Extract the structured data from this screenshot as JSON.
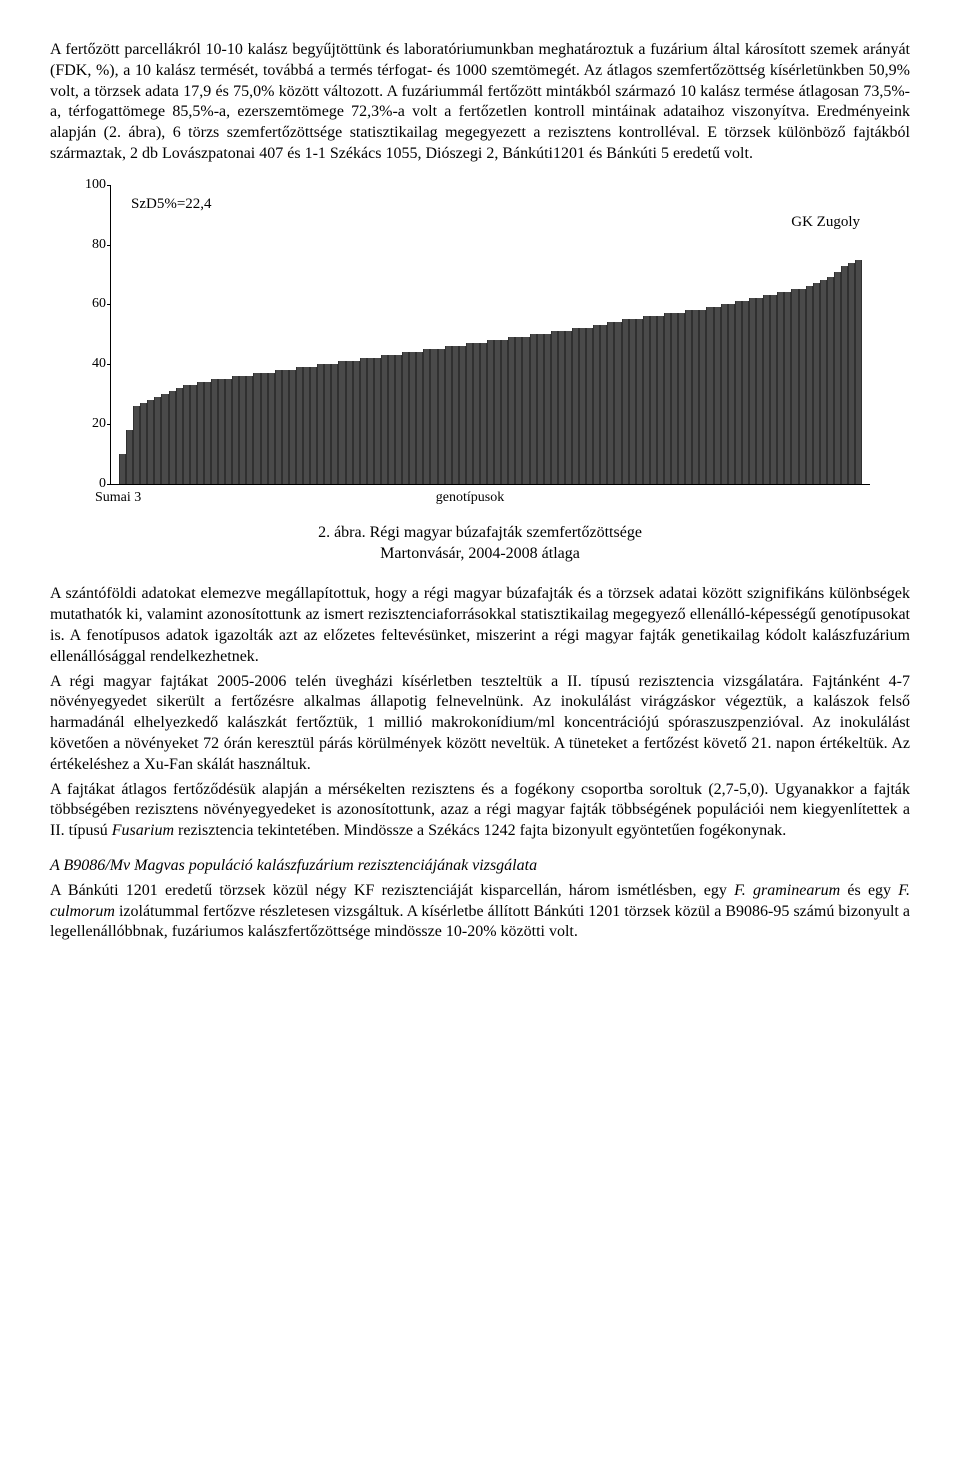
{
  "para1": "A fertőzött parcellákról 10-10 kalász begyűjtöttünk és laboratóriumunkban meghatároztuk a fuzárium által károsított szemek arányát (FDK, %), a 10 kalász termését, továbbá a termés térfogat- és 1000 szemtömegét. Az átlagos szemfertőzöttség kísérletünkben 50,9% volt, a törzsek adata 17,9 és 75,0% között változott. A fuzáriummál fertőzött mintákból származó 10 kalász termése átlagosan 73,5%-a, térfogattömege 85,5%-a, ezerszemtömege 72,3%-a volt a fertőzetlen kontroll mintáinak adataihoz viszonyítva. Eredményeink alapján (2. ábra), 6 törzs szemfertőzöttsége statisztikailag megegyezett a rezisztens kontrolléval. E törzsek különböző fajtákból származtak, 2 db Lovászpatonai 407 és 1-1 Székács 1055, Diószegi 2, Bánkúti1201 és Bánkúti 5 eredetű volt.",
  "chart": {
    "type": "bar",
    "annot_left": "SzD5%=22,4",
    "annot_right": "GK Zugoly",
    "ylim": [
      0,
      100
    ],
    "ytick_step": 20,
    "yticks": [
      0,
      20,
      40,
      60,
      80,
      100
    ],
    "xlabel_left": "Sumai 3",
    "xaxis_title": "genotípusok",
    "bar_color": "#4a4a4a",
    "background_color": "#ffffff",
    "values": [
      10,
      18,
      26,
      27,
      28,
      29,
      30,
      31,
      32,
      33,
      33,
      34,
      34,
      35,
      35,
      35,
      36,
      36,
      36,
      37,
      37,
      37,
      38,
      38,
      38,
      39,
      39,
      39,
      40,
      40,
      40,
      41,
      41,
      41,
      42,
      42,
      42,
      43,
      43,
      43,
      44,
      44,
      44,
      45,
      45,
      45,
      46,
      46,
      46,
      47,
      47,
      47,
      48,
      48,
      48,
      49,
      49,
      49,
      50,
      50,
      50,
      51,
      51,
      51,
      52,
      52,
      52,
      53,
      53,
      54,
      54,
      55,
      55,
      55,
      56,
      56,
      56,
      57,
      57,
      57,
      58,
      58,
      58,
      59,
      59,
      60,
      60,
      61,
      61,
      62,
      62,
      63,
      63,
      64,
      64,
      65,
      65,
      66,
      67,
      68,
      69,
      71,
      73,
      74,
      75
    ]
  },
  "fig_caption_line1": "2. ábra. Régi magyar búzafajták szemfertőzöttsége",
  "fig_caption_line2": "Martonvásár, 2004-2008 átlaga",
  "para2": "A szántóföldi adatokat elemezve megállapítottuk, hogy a régi magyar búzafajták és a törzsek adatai között szignifikáns különbségek mutathatók ki, valamint azonosítottunk az ismert rezisztenciaforrásokkal statisztikailag megegyező ellenálló-képességű genotípusokat is. A fenotípusos adatok igazolták azt az előzetes feltevésünket, miszerint a régi magyar fajták genetikailag kódolt kalászfuzárium ellenállósággal rendelkezhetnek.",
  "para3a": "A régi magyar fajtákat 2005-2006 telén üvegházi kísérletben teszteltük a II. típusú rezisztencia vizsgálatára. Fajtánként 4-7 növényegyedet sikerült a fertőzésre alkalmas állapotig felnevelnünk. Az inokulálást virágzáskor végeztük, a kalászok felső harmadánál elhelyezkedő kalászkát fertőztük, 1 millió makrokonídium/ml koncentrációjú spóraszuszpenzióval. Az inokulálást követően a növényeket 72 órán keresztül párás körülmények között neveltük. A tüneteket a fertőzést követő 21. napon értékeltük. Az értékeléshez a Xu-Fan skálát használtuk.",
  "para3b_1": "A fajtákat átlagos fertőződésük alapján a mérsékelten rezisztens és a fogékony csoportba soroltuk (2,7-5,0). Ugyanakkor a fajták többségében rezisztens növényegyedeket is azonosítottunk, azaz a régi magyar fajták többségének populációi nem kiegyenlítettek a II. típusú ",
  "para3b_italic": "Fusarium",
  "para3b_2": " rezisztencia tekintetében. Mindössze a Székács 1242 fajta bizonyult egyöntetűen fogékonynak.",
  "section_title": "A B9086/Mv Magvas populáció kalászfuzárium rezisztenciájának vizsgálata",
  "para4_1": "A Bánkúti 1201 eredetű törzsek közül négy KF rezisztenciáját kisparcellán, három ismétlésben, egy ",
  "para4_it1": "F. graminearum",
  "para4_2": " és egy ",
  "para4_it2": "F. culmorum",
  "para4_3": " izolátummal fertőzve részletesen vizsgáltuk. A kísérletbe állított Bánkúti 1201 törzsek közül a B9086-95 számú bizonyult a legellenállóbbnak, fuzáriumos kalászfertőzöttsége mindössze 10-20% közötti volt."
}
